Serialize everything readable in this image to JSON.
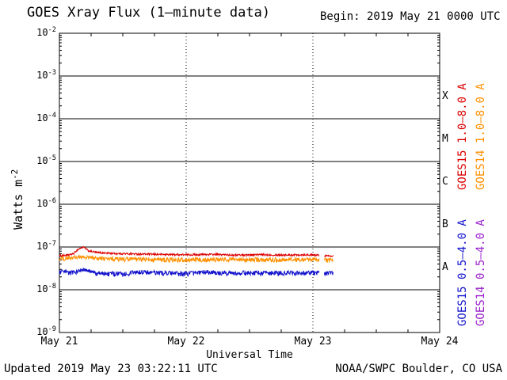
{
  "header": {
    "title": "GOES Xray Flux (1–minute data)",
    "begin_label": "Begin: 2019 May 21 0000 UTC"
  },
  "footer": {
    "updated": "Updated 2019 May 23 03:22:11 UTC",
    "credit": "NOAA/SWPC Boulder, CO USA"
  },
  "chart_data": {
    "type": "line",
    "title": "GOES Xray Flux (1–minute data)",
    "xlabel": "Universal Time",
    "ylabel_base": "Watts m",
    "ylabel_exp": "-2",
    "x_axis": {
      "lim_days": [
        0,
        3
      ],
      "ticks": [
        {
          "day": 0,
          "label": "May 21"
        },
        {
          "day": 1,
          "label": "May 22"
        },
        {
          "day": 2,
          "label": "May 23"
        },
        {
          "day": 3,
          "label": "May 24"
        }
      ]
    },
    "y_axis": {
      "scale": "log",
      "lim_exp": [
        -9,
        -2
      ],
      "decade_exponents": [
        -2,
        -3,
        -4,
        -5,
        -6,
        -7,
        -8,
        -9
      ]
    },
    "grid": {
      "horizontal": "solid-per-decade",
      "vertical": "dotted-per-day"
    },
    "flare_classes": [
      {
        "label": "X",
        "center_exp": -3.5
      },
      {
        "label": "M",
        "center_exp": -4.5
      },
      {
        "label": "C",
        "center_exp": -5.5
      },
      {
        "label": "B",
        "center_exp": -6.5
      },
      {
        "label": "A",
        "center_exp": -7.5
      }
    ],
    "legend": [
      {
        "name": "GOES15 1.0–8.0 A",
        "color": "#dd0000"
      },
      {
        "name": "GOES14 1.0–8.0 A",
        "color": "#ff9000"
      },
      {
        "name": "GOES15 0.5–4.0 A",
        "color": "#1111cc"
      },
      {
        "name": "GOES14 0.5–4.0 A",
        "color": "#9922cc"
      }
    ],
    "series": [
      {
        "name": "GOES15 1.0–8.0 A",
        "color": "#dd0000",
        "noise": 3.5e-09,
        "segments": [
          [
            [
              0,
              6.3e-08
            ],
            [
              0.06,
              6.4e-08
            ],
            [
              0.11,
              6.9e-08
            ],
            [
              0.15,
              8.9e-08
            ],
            [
              0.19,
              1e-07
            ],
            [
              0.23,
              8.1e-08
            ],
            [
              0.3,
              7.4e-08
            ],
            [
              0.45,
              7e-08
            ],
            [
              0.6,
              6.9e-08
            ],
            [
              0.8,
              6.7e-08
            ],
            [
              1.0,
              6.6e-08
            ],
            [
              1.2,
              6.7e-08
            ],
            [
              1.4,
              6.5e-08
            ],
            [
              1.6,
              6.6e-08
            ],
            [
              1.8,
              6.5e-08
            ],
            [
              1.95,
              6.6e-08
            ],
            [
              2.05,
              6.4e-08
            ]
          ],
          [
            [
              2.09,
              6.2e-08
            ],
            [
              2.16,
              6.3e-08
            ]
          ]
        ]
      },
      {
        "name": "GOES14 1.0–8.0 A",
        "color": "#ff9000",
        "noise": 6.5e-09,
        "segments": [
          [
            [
              0,
              5.3e-08
            ],
            [
              0.19,
              5.8e-08
            ],
            [
              0.4,
              5.2e-08
            ],
            [
              0.7,
              5.1e-08
            ],
            [
              1.0,
              5e-08
            ],
            [
              1.3,
              5.1e-08
            ],
            [
              1.6,
              5e-08
            ],
            [
              1.9,
              5.1e-08
            ],
            [
              2.05,
              5e-08
            ]
          ],
          [
            [
              2.09,
              4.9e-08
            ],
            [
              2.16,
              5e-08
            ]
          ]
        ]
      },
      {
        "name": "GOES15 0.5–4.0 A",
        "color": "#1111cc",
        "noise": 3.2e-09,
        "segments": [
          [
            [
              0,
              2.6e-08
            ],
            [
              0.1,
              2.5e-08
            ],
            [
              0.19,
              2.9e-08
            ],
            [
              0.3,
              2.4e-08
            ],
            [
              0.5,
              2.35e-08
            ],
            [
              0.65,
              2.6e-08
            ],
            [
              0.8,
              2.45e-08
            ],
            [
              1.0,
              2.35e-08
            ],
            [
              1.15,
              2.6e-08
            ],
            [
              1.3,
              2.45e-08
            ],
            [
              1.5,
              2.5e-08
            ],
            [
              1.7,
              2.45e-08
            ],
            [
              1.9,
              2.5e-08
            ],
            [
              2.05,
              2.45e-08
            ]
          ],
          [
            [
              2.09,
              2.4e-08
            ],
            [
              2.16,
              2.5e-08
            ]
          ]
        ]
      }
    ]
  }
}
